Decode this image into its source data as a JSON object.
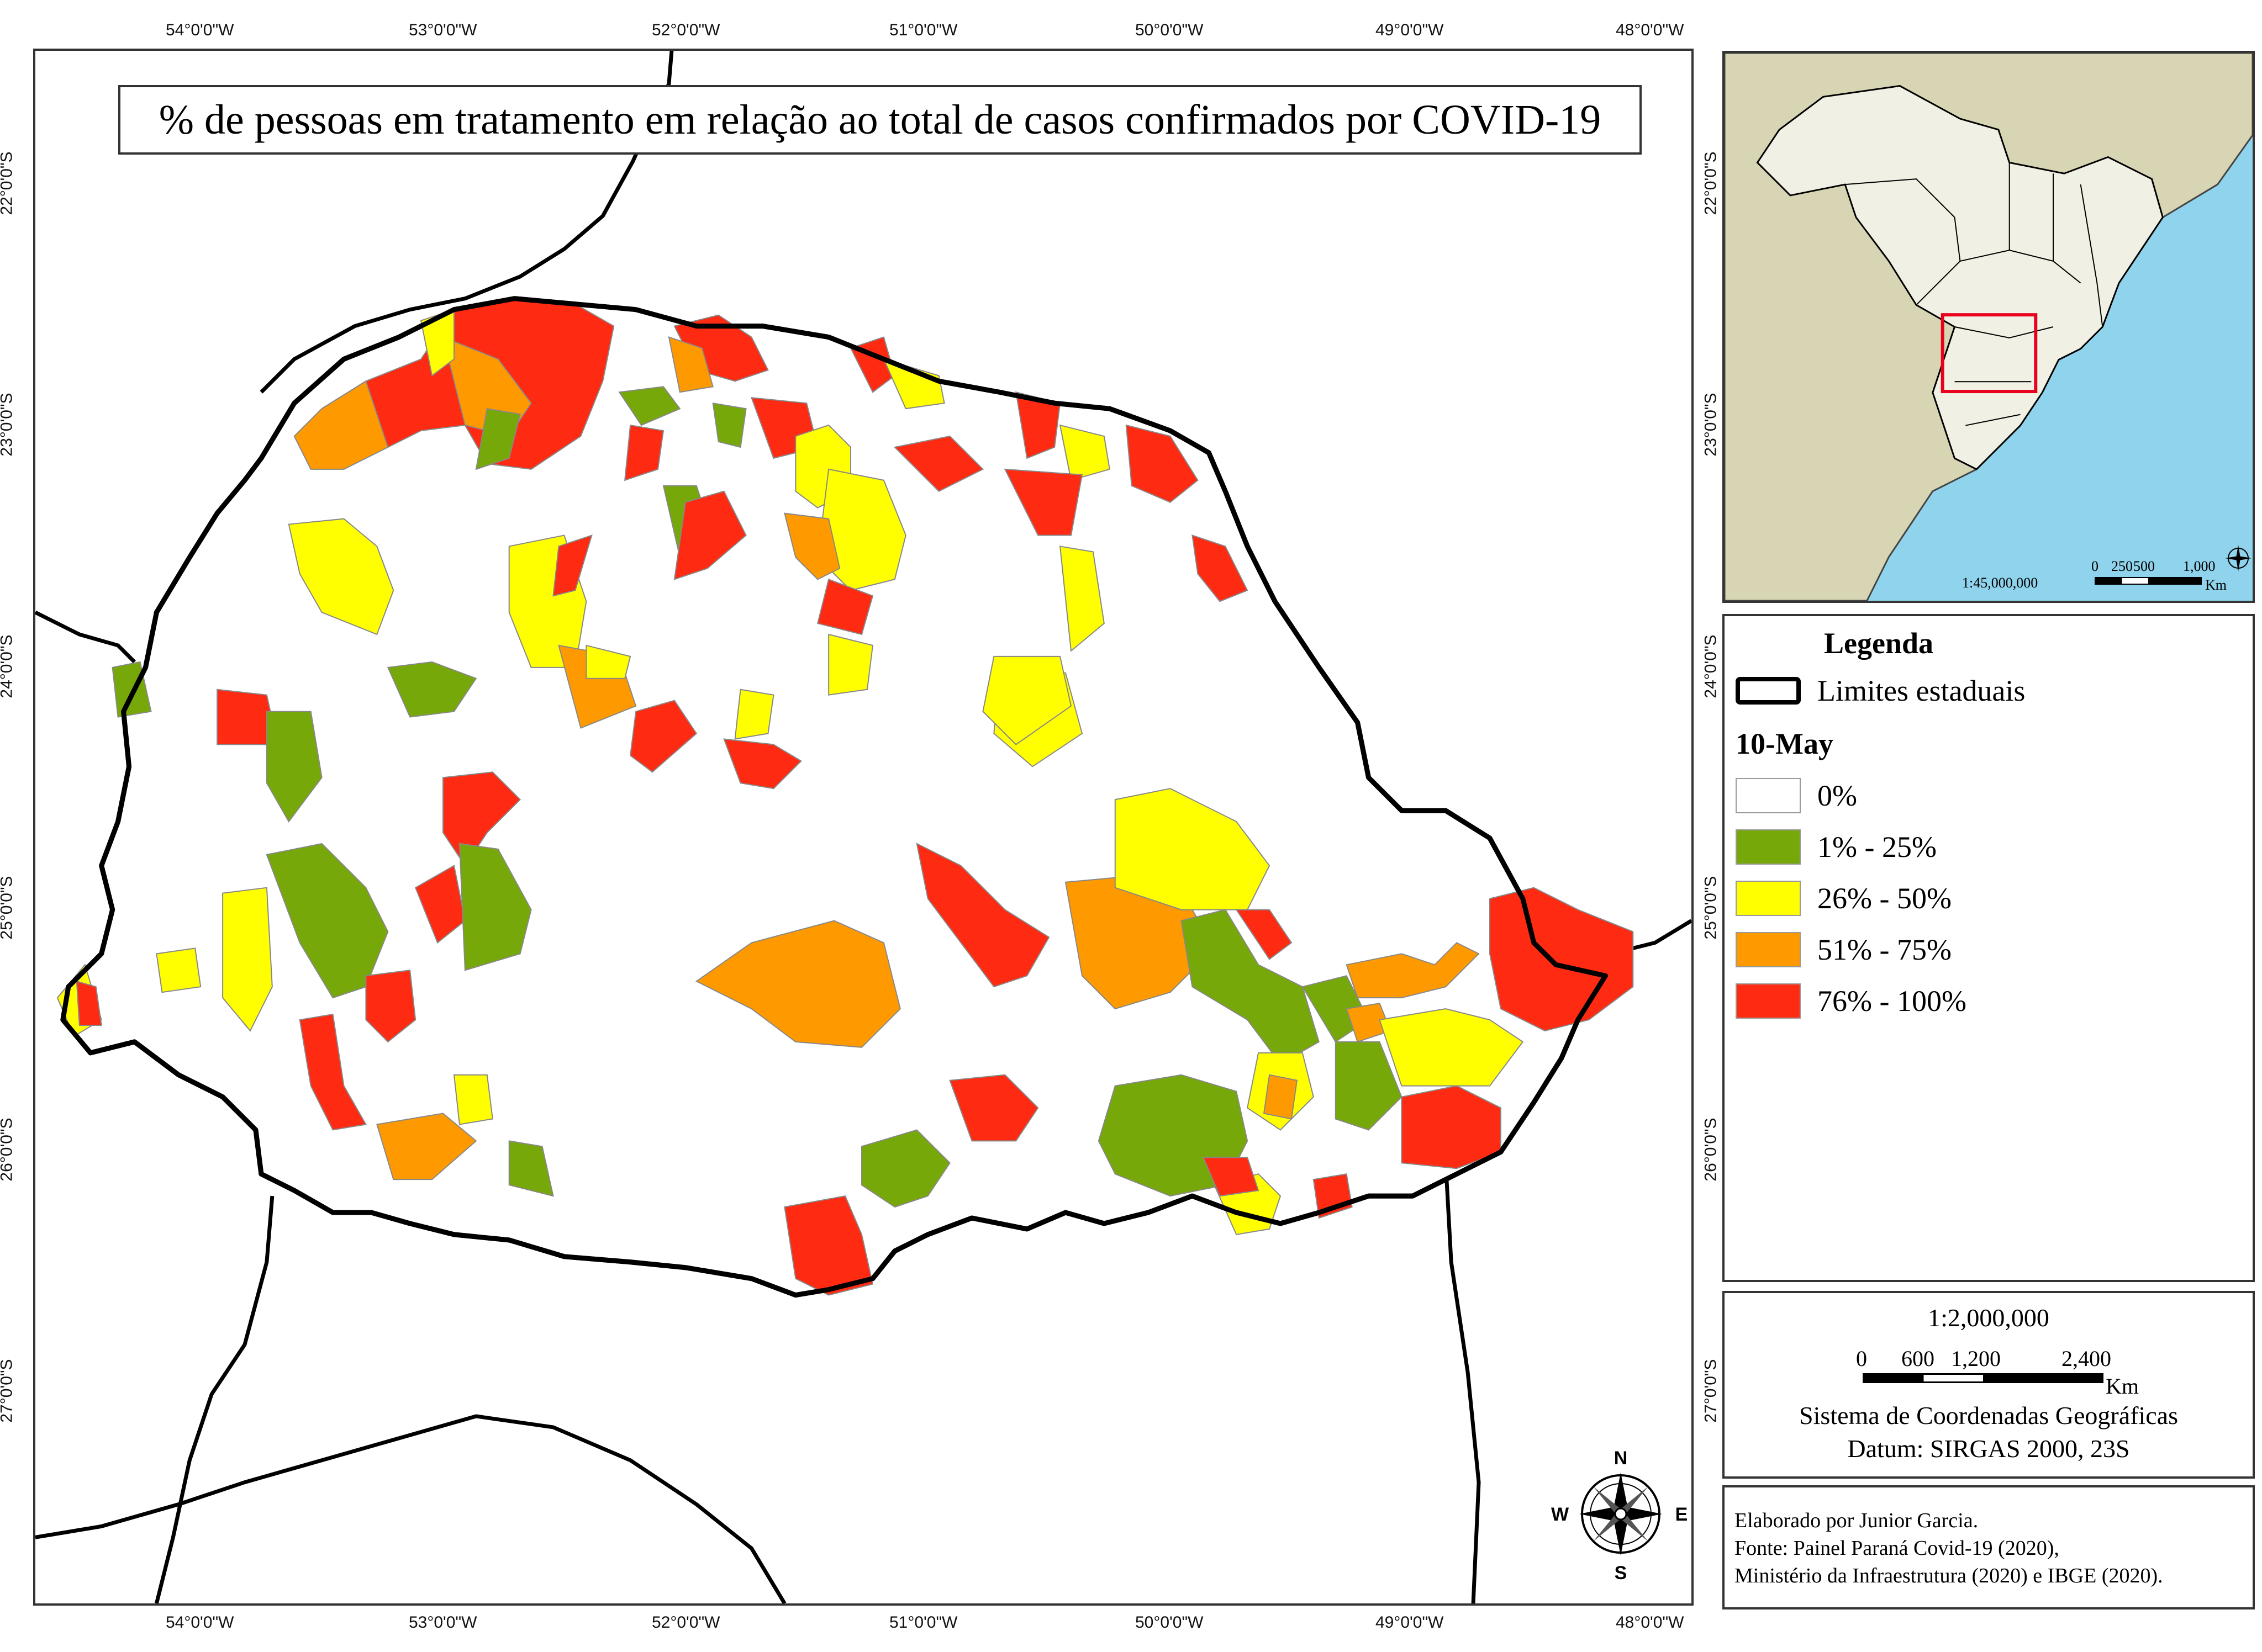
{
  "title": "% de pessoas em tratamento em relação ao total de casos confirmados por COVID-19",
  "longitudes": [
    "54°0'0\"W",
    "53°0'0\"W",
    "52°0'0\"W",
    "51°0'0\"W",
    "50°0'0\"W",
    "49°0'0\"W",
    "48°0'0\"W"
  ],
  "latitudes": [
    "22°0'0\"S",
    "23°0'0\"S",
    "24°0'0\"S",
    "25°0'0\"S",
    "26°0'0\"S",
    "27°0'0\"S"
  ],
  "colors": {
    "c0": "#ffffff",
    "c1": "#76a80a",
    "c2": "#ffff00",
    "c3": "#ff9900",
    "c4": "#ff2a12",
    "land": "#f1f0e4",
    "ocean": "#8fd3ec",
    "neighbor": "#d7d5b3",
    "inset_frame": "#e8001c"
  },
  "compass": {
    "n": "N",
    "s": "S",
    "e": "E",
    "w": "W"
  },
  "inset": {
    "scale_ratio": "1:45,000,000",
    "scale_ticks": [
      "0",
      "250",
      "500",
      "1,000"
    ],
    "scale_unit": "Km"
  },
  "legend": {
    "title": "Legenda",
    "state_limits": "Limites estaduais",
    "date": "10-May",
    "classes": [
      {
        "label": "0%",
        "color": "#ffffff"
      },
      {
        "label": "1% - 25%",
        "color": "#76a80a"
      },
      {
        "label": "26% - 50%",
        "color": "#ffff00"
      },
      {
        "label": "51% - 75%",
        "color": "#ff9900"
      },
      {
        "label": "76% - 100%",
        "color": "#ff2a12"
      }
    ]
  },
  "scale": {
    "ratio": "1:2,000,000",
    "ticks": [
      "0",
      "600",
      "1,200",
      "2,400"
    ],
    "unit": "Km",
    "system": "Sistema de Coordenadas Geográficas",
    "datum": "Datum: SIRGAS 2000, 23S"
  },
  "credits": {
    "author": "Elaborado por Junior Garcia.",
    "source1": "Fonte: Painel Paraná Covid-19 (2020),",
    "source2": "Ministério da Infraestrutura (2020) e IBGE (2020)."
  }
}
